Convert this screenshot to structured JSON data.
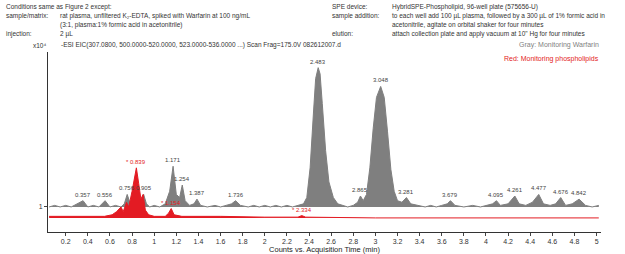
{
  "chart_data": {
    "type": "line",
    "header": {
      "left_title": "Conditions same as Figure 2 except:",
      "left": [
        {
          "label": "sample/matrix:",
          "text": [
            "rat plasma, unfiltered K₂-EDTA, spiked with Warfarin at 100 ng/mL",
            "(3:1, plasma:1% formic acid in acetonitrile)"
          ]
        },
        {
          "label": "injection:",
          "text": [
            "2 µL"
          ]
        }
      ],
      "right": [
        {
          "label": "SPE device:",
          "text": [
            "HybridSPE-Phospholipid, 96-well plate (575656-U)"
          ]
        },
        {
          "label": "sample addition:",
          "text": [
            "to each well add 100 µL plasma, followed by a 300 µL of 1% formic acid in acetonitrile, agitate on orbital shaker for four minutes"
          ]
        },
        {
          "label": "elution:",
          "text": [
            "attach collection plate and apply vacuum at 10\" Hg for four minutes"
          ]
        }
      ]
    },
    "subtitle": "-ESI EIC(307.0800, 500.0000-520.0000, 523.0000-536.0000 ...) Scan Frag=175.0V 082612007.d",
    "y_multiplier": "x10⁴",
    "notes": [
      {
        "text": "Gray: Monitoring Warfarin",
        "color": "#7f7f7f"
      },
      {
        "text": "Red: Monitoring phospholipids",
        "color": "#e31b23"
      }
    ],
    "x_label": "Counts vs. Acquisition Time (min)",
    "xlim": [
      0.04,
      5.04
    ],
    "xticks": [
      0.2,
      0.4,
      0.6,
      0.8,
      1,
      1.2,
      1.4,
      1.6,
      1.8,
      2,
      2.2,
      2.4,
      2.6,
      2.8,
      3,
      3.2,
      3.4,
      3.6,
      3.8,
      4,
      4.2,
      4.4,
      4.6,
      4.8,
      5
    ],
    "ylim": [
      0.84,
      1.99
    ],
    "yticks": [
      1
    ],
    "grid": false,
    "series": [
      {
        "name": "Warfarin",
        "color": "#7f7f7f",
        "baseline": 1.0,
        "x": [
          0.05,
          0.1,
          0.15,
          0.2,
          0.25,
          0.3,
          0.357,
          0.4,
          0.45,
          0.5,
          0.556,
          0.6,
          0.65,
          0.7,
          0.73,
          0.756,
          0.78,
          0.82,
          0.86,
          0.88,
          0.905,
          0.93,
          0.96,
          1.0,
          1.05,
          1.1,
          1.14,
          1.171,
          1.2,
          1.23,
          1.254,
          1.28,
          1.32,
          1.36,
          1.387,
          1.42,
          1.48,
          1.55,
          1.6,
          1.65,
          1.7,
          1.736,
          1.78,
          1.85,
          1.9,
          1.95,
          2.0,
          2.05,
          2.1,
          2.15,
          2.2,
          2.25,
          2.3,
          2.35,
          2.38,
          2.41,
          2.44,
          2.46,
          2.483,
          2.5,
          2.52,
          2.55,
          2.58,
          2.62,
          2.66,
          2.7,
          2.75,
          2.8,
          2.84,
          2.865,
          2.89,
          2.92,
          2.95,
          2.98,
          3.01,
          3.048,
          3.08,
          3.11,
          3.14,
          3.17,
          3.2,
          3.24,
          3.281,
          3.32,
          3.4,
          3.45,
          3.5,
          3.55,
          3.6,
          3.65,
          3.679,
          3.72,
          3.8,
          3.88,
          3.95,
          4.02,
          4.06,
          4.095,
          4.13,
          4.2,
          4.261,
          4.3,
          4.36,
          4.42,
          4.477,
          4.52,
          4.58,
          4.63,
          4.676,
          4.72,
          4.78,
          4.842,
          4.9,
          4.96,
          5.02
        ],
        "values": [
          1.0,
          1.01,
          1.0,
          1.01,
          1.0,
          1.02,
          1.04,
          1.0,
          1.01,
          1.0,
          1.04,
          1.0,
          1.01,
          1.0,
          1.02,
          1.08,
          1.03,
          1.01,
          1.02,
          1.04,
          1.08,
          1.02,
          1.0,
          1.01,
          1.0,
          1.02,
          1.1,
          1.26,
          1.08,
          1.06,
          1.14,
          1.04,
          1.01,
          1.02,
          1.05,
          1.01,
          1.0,
          1.01,
          1.0,
          1.01,
          1.02,
          1.04,
          1.01,
          1.0,
          1.01,
          1.0,
          1.01,
          1.0,
          1.01,
          1.0,
          1.01,
          1.0,
          1.01,
          1.02,
          1.06,
          1.25,
          1.6,
          1.82,
          1.89,
          1.85,
          1.66,
          1.36,
          1.16,
          1.06,
          1.02,
          1.01,
          1.0,
          1.01,
          1.03,
          1.07,
          1.04,
          1.08,
          1.25,
          1.5,
          1.7,
          1.77,
          1.7,
          1.48,
          1.24,
          1.1,
          1.04,
          1.03,
          1.06,
          1.02,
          1.01,
          1.0,
          1.01,
          1.0,
          1.01,
          1.02,
          1.04,
          1.01,
          1.0,
          1.01,
          1.0,
          1.01,
          1.02,
          1.04,
          1.01,
          1.02,
          1.07,
          1.02,
          1.01,
          1.03,
          1.08,
          1.02,
          1.01,
          1.02,
          1.06,
          1.01,
          1.02,
          1.05,
          1.01,
          1.0,
          1.01
        ],
        "peaks": [
          {
            "x": 0.357,
            "label": "0.357"
          },
          {
            "x": 0.556,
            "label": "0.556"
          },
          {
            "x": 0.756,
            "label": "0.756"
          },
          {
            "x": 0.905,
            "label": "0.905"
          },
          {
            "x": 1.171,
            "label": "1.171"
          },
          {
            "x": 1.254,
            "label": "1.254"
          },
          {
            "x": 1.387,
            "label": "1.387"
          },
          {
            "x": 1.736,
            "label": "1.736"
          },
          {
            "x": 2.483,
            "label": "2.483"
          },
          {
            "x": 2.865,
            "label": "2.865"
          },
          {
            "x": 3.048,
            "label": "3.048"
          },
          {
            "x": 3.281,
            "label": "3.281"
          },
          {
            "x": 3.679,
            "label": "3.679"
          },
          {
            "x": 4.095,
            "label": "4.095"
          },
          {
            "x": 4.261,
            "label": "4.261"
          },
          {
            "x": 4.477,
            "label": "4.477"
          },
          {
            "x": 4.676,
            "label": "4.676"
          },
          {
            "x": 4.842,
            "label": "4.842"
          }
        ]
      },
      {
        "name": "Phospholipids",
        "color": "#e31b23",
        "baseline": 0.93,
        "x": [
          0.05,
          0.3,
          0.55,
          0.62,
          0.66,
          0.7,
          0.72,
          0.75,
          0.77,
          0.8,
          0.82,
          0.839,
          0.86,
          0.88,
          0.9,
          0.92,
          0.95,
          1.0,
          1.1,
          1.13,
          1.154,
          1.18,
          1.25,
          1.6,
          2.0,
          2.3,
          2.334,
          2.37,
          3.0,
          4.0,
          5.02
        ],
        "values": [
          0.94,
          0.94,
          0.94,
          0.95,
          0.97,
          1.0,
          0.97,
          1.03,
          1.0,
          1.1,
          1.17,
          1.25,
          1.15,
          1.05,
          1.08,
          0.98,
          0.95,
          0.94,
          0.94,
          0.96,
          0.99,
          0.95,
          0.94,
          0.94,
          0.935,
          0.935,
          0.945,
          0.935,
          0.93,
          0.93,
          0.93
        ],
        "peaks": [
          {
            "x": 0.839,
            "label": "* 0.839"
          },
          {
            "x": 1.154,
            "label": "* 1.154"
          },
          {
            "x": 2.334,
            "label": "* 2.334"
          }
        ]
      }
    ]
  }
}
